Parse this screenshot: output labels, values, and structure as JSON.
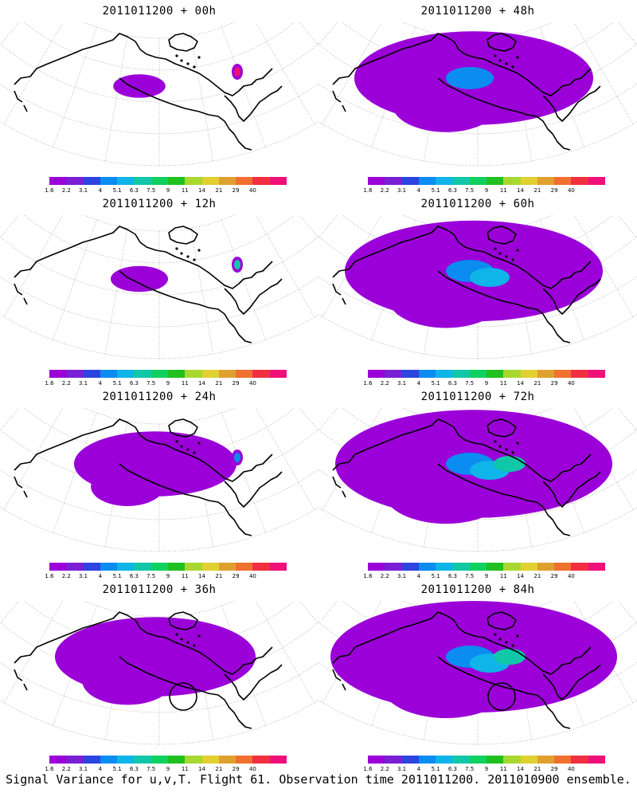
{
  "panels": [
    {
      "title": "2011011200 + 00h",
      "spread": 0.12,
      "intensity": 0,
      "circle": false,
      "hotspot": "magenta"
    },
    {
      "title": "2011011200 + 48h",
      "spread": 0.75,
      "intensity": 1,
      "circle": false,
      "hotspot": "none"
    },
    {
      "title": "2011011200 + 12h",
      "spread": 0.2,
      "intensity": 0,
      "circle": false,
      "hotspot": "teal"
    },
    {
      "title": "2011011200 + 60h",
      "spread": 0.85,
      "intensity": 2,
      "circle": false,
      "hotspot": "none"
    },
    {
      "title": "2011011200 + 24h",
      "spread": 0.35,
      "intensity": 0,
      "circle": false,
      "hotspot": "blue"
    },
    {
      "title": "2011011200 + 72h",
      "spread": 0.95,
      "intensity": 3,
      "circle": false,
      "hotspot": "none"
    },
    {
      "title": "2011011200 + 36h",
      "spread": 0.55,
      "intensity": 0,
      "circle": true,
      "hotspot": "none"
    },
    {
      "title": "2011011200 + 84h",
      "spread": 1.0,
      "intensity": 3,
      "circle": true,
      "hotspot": "none"
    }
  ],
  "colorbar": {
    "labels": [
      "1.6",
      "2.2",
      "3.1",
      "4",
      "5.1",
      "6.3",
      "7.5",
      "9",
      "11",
      "14",
      "21",
      "29",
      "40"
    ],
    "colors": [
      "#9b00d9",
      "#7a1fd4",
      "#2c44e0",
      "#0a8cf0",
      "#0fb4e8",
      "#10c8a8",
      "#10d060",
      "#20c020",
      "#a8d830",
      "#e0d030",
      "#e0a030",
      "#f07030",
      "#f03040",
      "#f0107a"
    ]
  },
  "caption": "Signal Variance for u,v,T. Flight 61. Observation time 2011011200. 2011010900 ensemble."
}
